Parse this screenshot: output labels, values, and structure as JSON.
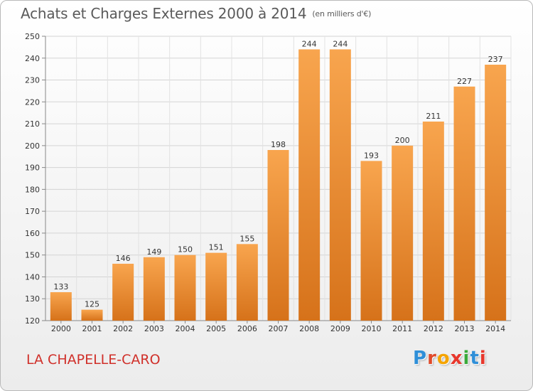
{
  "title": "Achats et Charges Externes 2000 à 2014",
  "subtitle": "(en milliers d'€)",
  "place": "LA CHAPELLE-CARO",
  "brand": {
    "letters": [
      "P",
      "r",
      "o",
      "x",
      "i",
      "t",
      "i"
    ],
    "colors": [
      "#2f8fd8",
      "#e04a2a",
      "#f5a400",
      "#e8372c",
      "#3aaa3a",
      "#2f8fd8",
      "#e8372c"
    ]
  },
  "colors": {
    "bar_light": "#f7a24a",
    "bar_dark": "#d8741c",
    "place": "#d0302a"
  },
  "chart_data": {
    "type": "bar",
    "title": "Achats et Charges Externes 2000 à 2014",
    "subtitle": "(en milliers d'€)",
    "categories": [
      "2000",
      "2001",
      "2002",
      "2003",
      "2004",
      "2005",
      "2006",
      "2007",
      "2008",
      "2009",
      "2010",
      "2011",
      "2012",
      "2013",
      "2014"
    ],
    "values": [
      133,
      125,
      146,
      149,
      150,
      151,
      155,
      198,
      244,
      244,
      193,
      200,
      211,
      227,
      237
    ],
    "ylim": [
      120,
      250
    ],
    "yticks": [
      120,
      130,
      140,
      150,
      160,
      170,
      180,
      190,
      200,
      210,
      220,
      230,
      240,
      250
    ],
    "grid": true,
    "legend": "none"
  }
}
